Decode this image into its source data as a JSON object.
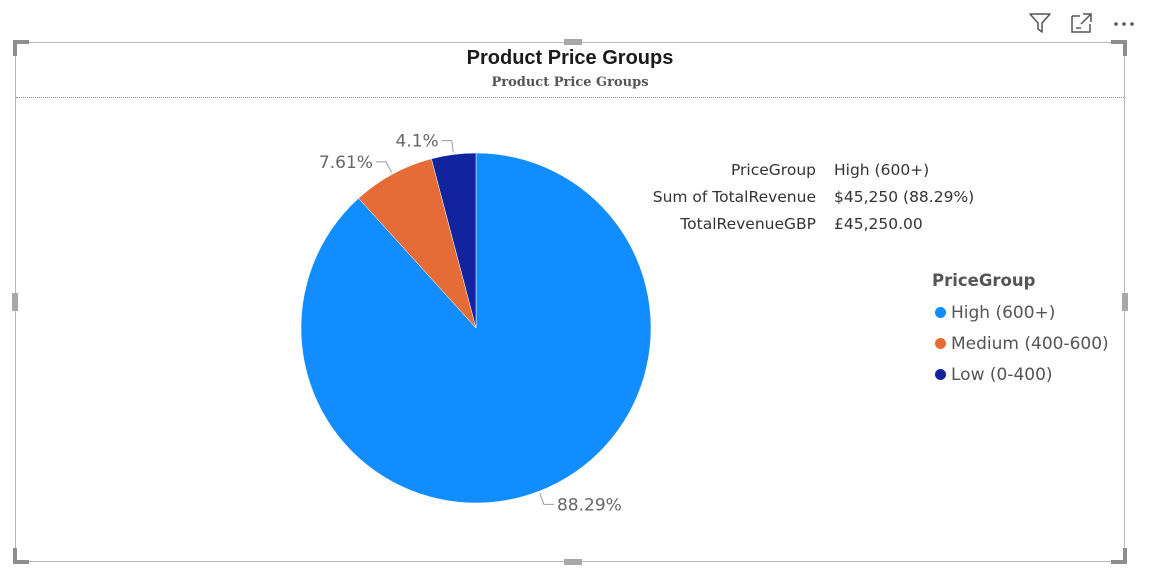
{
  "toolbar": {
    "icons": [
      "filter-icon",
      "focus-mode-icon",
      "more-options-icon"
    ]
  },
  "chart_data": {
    "type": "pie",
    "title": "Product Price Groups",
    "subtitle": "Product Price Groups",
    "categories": [
      "High (600+)",
      "Medium (400-600)",
      "Low (0-400)"
    ],
    "values": [
      88.29,
      7.61,
      4.1
    ],
    "data_labels": [
      "88.29%",
      "7.61%",
      "4.1%"
    ],
    "colors": [
      "#118DFF",
      "#E66C37",
      "#12239E"
    ],
    "legend": {
      "title": "PriceGroup",
      "position": "right"
    }
  },
  "tooltip": {
    "rows": [
      {
        "key": "PriceGroup",
        "value": "High (600+)"
      },
      {
        "key": "Sum of TotalRevenue",
        "value": "$45,250 (88.29%)"
      },
      {
        "key": "TotalRevenueGBP",
        "value": "£45,250.00"
      }
    ]
  }
}
